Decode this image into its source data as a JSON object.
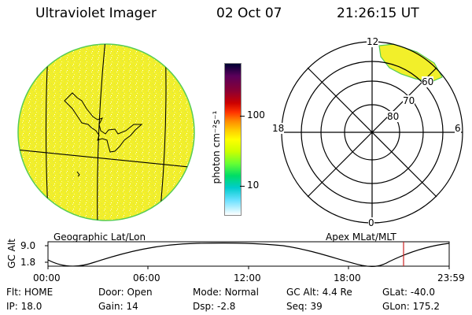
{
  "header": {
    "instrument": "Ultraviolet Imager",
    "date": "02 Oct 07",
    "time": "21:26:15 UT"
  },
  "geo_panel": {
    "label": "Geographic Lat/Lon"
  },
  "apex_panel": {
    "label": "Apex MLat/MLT",
    "mlt_labels": {
      "top": "12",
      "left": "18",
      "right": "6",
      "bottom": "0"
    },
    "lat_labels": [
      "60",
      "70",
      "80"
    ]
  },
  "colorbar": {
    "unit_label": "photon cm⁻²s⁻¹",
    "ticks": [
      "100",
      "10"
    ],
    "scale": "log",
    "colors": [
      "#000033",
      "#5a005a",
      "#8b0033",
      "#cc0000",
      "#ff3300",
      "#ff8c00",
      "#ffcc00",
      "#ffff00",
      "#ccff00",
      "#66ff33",
      "#00dd66",
      "#00cccc",
      "#66e0ff",
      "#ffffff"
    ]
  },
  "alt_plot": {
    "ylabel": "GC Alt",
    "y_ticks": [
      "9.0",
      "1.8"
    ],
    "x_ticks": [
      "00:00",
      "06:00",
      "12:00",
      "18:00",
      "23:59"
    ]
  },
  "status": {
    "row1": [
      {
        "key": "Flt:",
        "val": "HOME"
      },
      {
        "key": "Door:",
        "val": "Open"
      },
      {
        "key": "Mode:",
        "val": "Normal"
      },
      {
        "key": "GC Alt:",
        "val": "4.4 Re"
      },
      {
        "key": "GLat:",
        "val": "-40.0"
      }
    ],
    "row2": [
      {
        "key": "IP:",
        "val": "18.0"
      },
      {
        "key": "Gain:",
        "val": "14"
      },
      {
        "key": "Dsp:",
        "val": "-2.8"
      },
      {
        "key": "Seq:",
        "val": "39"
      },
      {
        "key": "GLon:",
        "val": "175.2"
      }
    ]
  }
}
